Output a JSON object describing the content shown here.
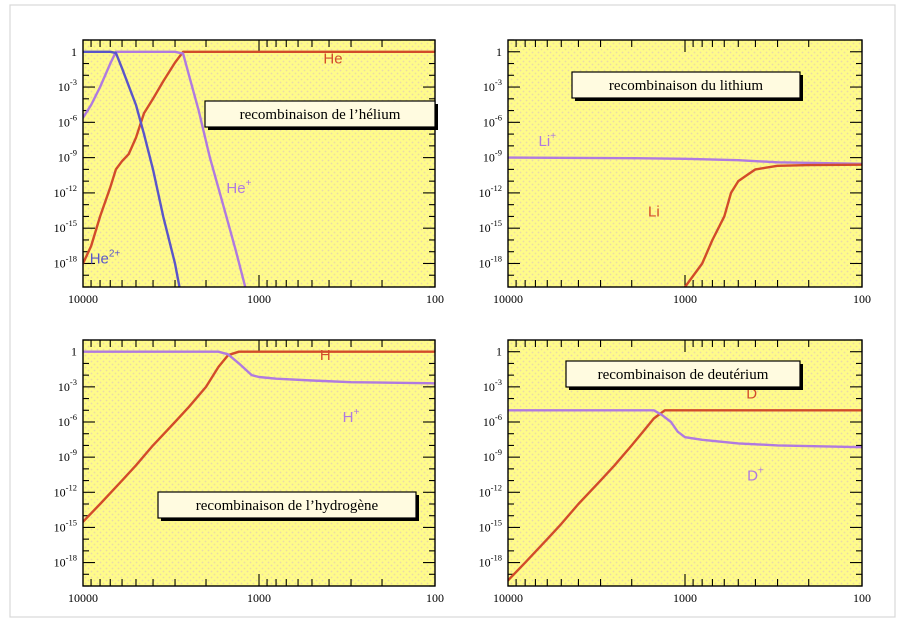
{
  "colors": {
    "background": "#ffffff",
    "plot_fill": "#fffb8a",
    "plot_pattern_dots": "#ead9a8",
    "neutral": "#d24b2a",
    "ion": "#b07ae0",
    "double_ion": "#5a55c9"
  },
  "chart_data": [
    {
      "type": "line",
      "title": "recombinaison de l’hélium",
      "xlabel": "",
      "ylabel": "",
      "x_scale": "log",
      "x_reversed": true,
      "xlim": [
        10000,
        100
      ],
      "y_scale": "log",
      "ylim": [
        1e-20,
        10.0
      ],
      "x_ticks": [
        {
          "value": 10000,
          "label": "10000"
        },
        {
          "value": 1000,
          "label": "1000"
        },
        {
          "value": 100,
          "label": "100"
        }
      ],
      "y_ticks": [
        {
          "value": 1,
          "base": "1",
          "exp": ""
        },
        {
          "value": 0.001,
          "base": "10",
          "exp": "-3"
        },
        {
          "value": 1e-06,
          "base": "10",
          "exp": "-6"
        },
        {
          "value": 1e-09,
          "base": "10",
          "exp": "-9"
        },
        {
          "value": 1e-12,
          "base": "10",
          "exp": "-12"
        },
        {
          "value": 1e-15,
          "base": "10",
          "exp": "-15"
        },
        {
          "value": 1e-18,
          "base": "10",
          "exp": "-18"
        }
      ],
      "series": [
        {
          "name": "He",
          "name_base": "He",
          "name_sup": "",
          "color": "#d24b2a",
          "label_at": [
            380,
            0.1
          ],
          "points": [
            [
              10000,
              1e-18
            ],
            [
              9000,
              3e-17
            ],
            [
              8000,
              1e-14
            ],
            [
              7000,
              3e-12
            ],
            [
              6500,
              1e-10
            ],
            [
              6000,
              5e-10
            ],
            [
              5500,
              2e-09
            ],
            [
              5000,
              5e-08
            ],
            [
              4500,
              6e-06
            ],
            [
              4000,
              0.0001
            ],
            [
              3500,
              0.003
            ],
            [
              3000,
              0.12
            ],
            [
              2700,
              1
            ],
            [
              100,
              1
            ]
          ]
        },
        {
          "name": "He+",
          "name_base": "He",
          "name_sup": "+",
          "color": "#b07ae0",
          "label_at": [
            1300,
            1e-12
          ],
          "points": [
            [
              10000,
              2.5e-06
            ],
            [
              9000,
              3e-05
            ],
            [
              8000,
              0.001
            ],
            [
              7000,
              0.1
            ],
            [
              6500,
              1
            ],
            [
              3000,
              1
            ],
            [
              2700,
              0.7
            ],
            [
              2500,
              0.01
            ],
            [
              2200,
              1e-05
            ],
            [
              1900,
              1e-09
            ],
            [
              1600,
              1e-13
            ],
            [
              1350,
              1e-17
            ],
            [
              1150,
              1e-21
            ]
          ]
        },
        {
          "name": "He2+",
          "name_base": "He",
          "name_sup": "2+",
          "color": "#5a55c9",
          "label_at": [
            7500,
            1e-18
          ],
          "points": [
            [
              10000,
              1
            ],
            [
              7000,
              1
            ],
            [
              6500,
              0.8
            ],
            [
              6000,
              0.04
            ],
            [
              5000,
              3e-05
            ],
            [
              4500,
              1e-07
            ],
            [
              4000,
              1e-10
            ],
            [
              3500,
              1e-14
            ],
            [
              3000,
              1e-18
            ],
            [
              2750,
              1e-21
            ]
          ]
        }
      ]
    },
    {
      "type": "line",
      "title": "recombinaison du lithium",
      "xlabel": "",
      "ylabel": "",
      "x_scale": "log",
      "x_reversed": true,
      "xlim": [
        10000,
        100
      ],
      "y_scale": "log",
      "ylim": [
        1e-20,
        10.0
      ],
      "x_ticks": [
        {
          "value": 10000,
          "label": "10000"
        },
        {
          "value": 1000,
          "label": "1000"
        },
        {
          "value": 100,
          "label": "100"
        }
      ],
      "y_ticks": [
        {
          "value": 1,
          "base": "1",
          "exp": ""
        },
        {
          "value": 0.001,
          "base": "10",
          "exp": "-3"
        },
        {
          "value": 1e-06,
          "base": "10",
          "exp": "-6"
        },
        {
          "value": 1e-09,
          "base": "10",
          "exp": "-9"
        },
        {
          "value": 1e-12,
          "base": "10",
          "exp": "-12"
        },
        {
          "value": 1e-15,
          "base": "10",
          "exp": "-15"
        },
        {
          "value": 1e-18,
          "base": "10",
          "exp": "-18"
        }
      ],
      "series": [
        {
          "name": "Li+",
          "name_base": "Li",
          "name_sup": "+",
          "color": "#b07ae0",
          "label_at": [
            6000,
            1e-08
          ],
          "points": [
            [
              10000,
              1e-09
            ],
            [
              2000,
              9e-10
            ],
            [
              1000,
              8e-10
            ],
            [
              500,
              6e-10
            ],
            [
              300,
              4e-10
            ],
            [
              100,
              3e-10
            ]
          ]
        },
        {
          "name": "Li",
          "name_base": "Li",
          "name_sup": "",
          "color": "#d24b2a",
          "label_at": [
            1500,
            1e-14
          ],
          "points": [
            [
              1000,
              1e-20
            ],
            [
              800,
              1e-18
            ],
            [
              700,
              1e-16
            ],
            [
              600,
              1e-14
            ],
            [
              550,
              1e-12
            ],
            [
              500,
              1e-11
            ],
            [
              450,
              3e-11
            ],
            [
              400,
              1e-10
            ],
            [
              300,
              2e-10
            ],
            [
              200,
              2.3e-10
            ],
            [
              100,
              2.5e-10
            ]
          ]
        }
      ]
    },
    {
      "type": "line",
      "title": "recombinaison de l’hydrogène",
      "xlabel": "",
      "ylabel": "",
      "x_scale": "log",
      "x_reversed": true,
      "xlim": [
        10000,
        100
      ],
      "y_scale": "log",
      "ylim": [
        1e-20,
        10.0
      ],
      "x_ticks": [
        {
          "value": 10000,
          "label": "10000"
        },
        {
          "value": 1000,
          "label": "1000"
        },
        {
          "value": 100,
          "label": "100"
        }
      ],
      "y_ticks": [
        {
          "value": 1,
          "base": "1",
          "exp": ""
        },
        {
          "value": 0.001,
          "base": "10",
          "exp": "-3"
        },
        {
          "value": 1e-06,
          "base": "10",
          "exp": "-6"
        },
        {
          "value": 1e-09,
          "base": "10",
          "exp": "-9"
        },
        {
          "value": 1e-12,
          "base": "10",
          "exp": "-12"
        },
        {
          "value": 1e-15,
          "base": "10",
          "exp": "-15"
        },
        {
          "value": 1e-18,
          "base": "10",
          "exp": "-18"
        }
      ],
      "series": [
        {
          "name": "H",
          "name_base": "H",
          "name_sup": "",
          "color": "#d24b2a",
          "label_at": [
            420,
            0.2
          ],
          "points": [
            [
              10000,
              3e-15
            ],
            [
              8000,
              1e-13
            ],
            [
              6000,
              1e-11
            ],
            [
              5000,
              2e-10
            ],
            [
              4000,
              1e-08
            ],
            [
              3000,
              1e-06
            ],
            [
              2500,
              2e-05
            ],
            [
              2000,
              0.001
            ],
            [
              1700,
              0.05
            ],
            [
              1500,
              0.5
            ],
            [
              1300,
              1
            ],
            [
              100,
              1
            ]
          ]
        },
        {
          "name": "H+",
          "name_base": "H",
          "name_sup": "+",
          "color": "#b07ae0",
          "label_at": [
            300,
            1e-06
          ],
          "points": [
            [
              10000,
              1
            ],
            [
              1700,
              1
            ],
            [
              1500,
              0.6
            ],
            [
              1300,
              0.1
            ],
            [
              1100,
              0.01
            ],
            [
              1000,
              0.007
            ],
            [
              800,
              0.005
            ],
            [
              500,
              0.0035
            ],
            [
              300,
              0.0025
            ],
            [
              100,
              0.002
            ]
          ]
        }
      ]
    },
    {
      "type": "line",
      "title": "recombinaison de deutérium",
      "xlabel": "",
      "ylabel": "",
      "x_scale": "log",
      "x_reversed": true,
      "xlim": [
        10000,
        100
      ],
      "y_scale": "log",
      "ylim": [
        1e-20,
        10.0
      ],
      "x_ticks": [
        {
          "value": 10000,
          "label": "10000"
        },
        {
          "value": 1000,
          "label": "1000"
        },
        {
          "value": 100,
          "label": "100"
        }
      ],
      "y_ticks": [
        {
          "value": 1,
          "base": "1",
          "exp": ""
        },
        {
          "value": 0.001,
          "base": "10",
          "exp": "-3"
        },
        {
          "value": 1e-06,
          "base": "10",
          "exp": "-6"
        },
        {
          "value": 1e-09,
          "base": "10",
          "exp": "-9"
        },
        {
          "value": 1e-12,
          "base": "10",
          "exp": "-12"
        },
        {
          "value": 1e-15,
          "base": "10",
          "exp": "-15"
        },
        {
          "value": 1e-18,
          "base": "10",
          "exp": "-18"
        }
      ],
      "series": [
        {
          "name": "D",
          "name_base": "D",
          "name_sup": "",
          "color": "#d24b2a",
          "label_at": [
            420,
            0.0001
          ],
          "points": [
            [
              10000,
              3e-20
            ],
            [
              8000,
              1e-18
            ],
            [
              6000,
              1e-16
            ],
            [
              5000,
              2e-15
            ],
            [
              4000,
              1e-13
            ],
            [
              3000,
              1e-11
            ],
            [
              2500,
              2e-10
            ],
            [
              2000,
              1e-08
            ],
            [
              1700,
              2e-07
            ],
            [
              1500,
              2e-06
            ],
            [
              1300,
              1e-05
            ],
            [
              100,
              1e-05
            ]
          ]
        },
        {
          "name": "D+",
          "name_base": "D",
          "name_sup": "+",
          "color": "#b07ae0",
          "label_at": [
            400,
            1e-11
          ],
          "points": [
            [
              10000,
              1e-05
            ],
            [
              1500,
              1e-05
            ],
            [
              1350,
              4e-06
            ],
            [
              1200,
              1e-06
            ],
            [
              1100,
              1.5e-07
            ],
            [
              1000,
              5e-08
            ],
            [
              800,
              3e-08
            ],
            [
              500,
              1.5e-08
            ],
            [
              300,
              1e-08
            ],
            [
              100,
              7e-09
            ]
          ]
        }
      ]
    }
  ]
}
